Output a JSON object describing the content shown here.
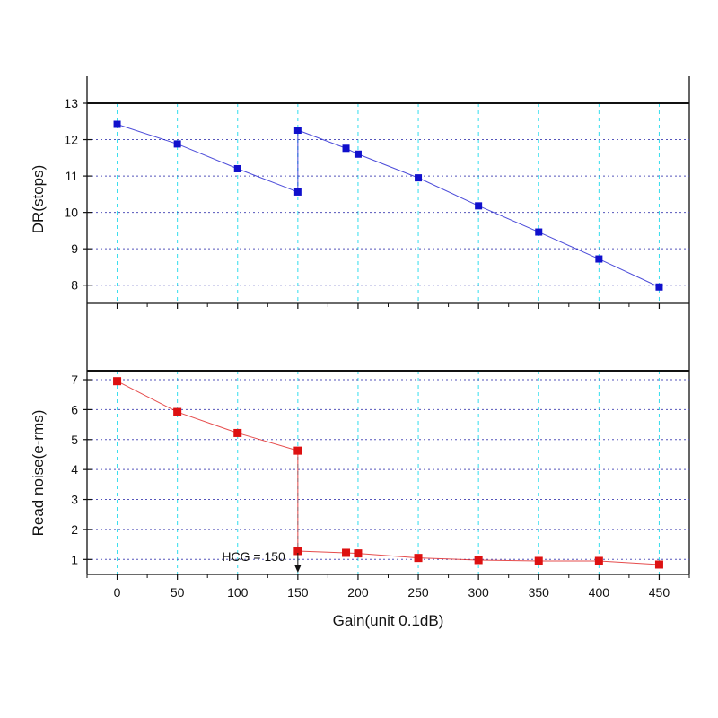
{
  "chart_data": [
    {
      "type": "line",
      "ylabel": "DR(stops)",
      "xlabel": "",
      "xlim": [
        -25,
        475
      ],
      "ylim": [
        7.5,
        13
      ],
      "yticks": [
        8,
        9,
        10,
        11,
        12,
        13
      ],
      "xticks": [
        0,
        50,
        100,
        150,
        200,
        250,
        300,
        350,
        400,
        450
      ],
      "grid": true,
      "series": [
        {
          "color": "#1010cc",
          "marker": "square",
          "x": [
            0,
            50,
            100,
            150,
            150,
            190,
            200,
            250,
            300,
            350,
            400,
            450
          ],
          "y": [
            12.42,
            11.88,
            11.2,
            10.56,
            12.26,
            11.76,
            11.6,
            10.95,
            10.18,
            9.46,
            8.72,
            7.95
          ]
        }
      ]
    },
    {
      "type": "line",
      "ylabel": "Read noise(e-rms)",
      "xlabel": "Gain(unit 0.1dB)",
      "xlim": [
        -25,
        475
      ],
      "ylim": [
        0.5,
        7.3
      ],
      "yticks": [
        1,
        2,
        3,
        4,
        5,
        6,
        7
      ],
      "xticks": [
        0,
        50,
        100,
        150,
        200,
        250,
        300,
        350,
        400,
        450
      ],
      "xticklabels": [
        "0",
        "50",
        "100",
        "150",
        "200",
        "250",
        "300",
        "350",
        "400",
        "450"
      ],
      "grid": true,
      "series": [
        {
          "color": "#dd1111",
          "marker": "square",
          "x": [
            0,
            50,
            100,
            150,
            150,
            190,
            200,
            250,
            300,
            350,
            400,
            450
          ],
          "y": [
            6.95,
            5.92,
            5.22,
            4.63,
            1.28,
            1.22,
            1.2,
            1.05,
            0.98,
            0.95,
            0.95,
            0.83
          ]
        }
      ],
      "annotations": [
        {
          "text": "HCG = 150",
          "x": 150,
          "arrow": "down"
        }
      ]
    }
  ]
}
